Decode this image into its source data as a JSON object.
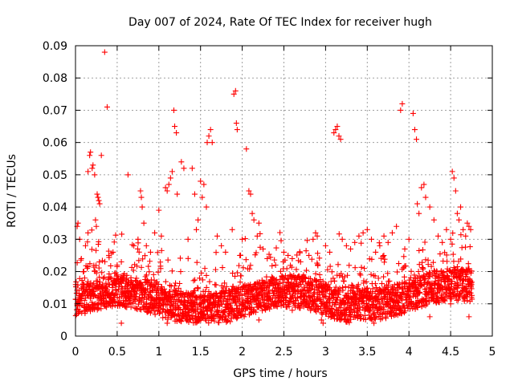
{
  "chart_data": {
    "type": "scatter",
    "title": "Day 007 of 2024, Rate Of TEC Index for receiver hugh",
    "xlabel": "GPS time / hours",
    "ylabel": "ROTI / TECUs",
    "xlim": [
      0,
      5
    ],
    "ylim": [
      0,
      0.09
    ],
    "xticks": [
      0,
      0.5,
      1,
      1.5,
      2,
      2.5,
      3,
      3.5,
      4,
      4.5,
      5
    ],
    "xtick_labels": [
      "0",
      "0.5",
      "1",
      "1.5",
      "2",
      "2.5",
      "3",
      "3.5",
      "4",
      "4.5",
      "5"
    ],
    "yticks": [
      0,
      0.01,
      0.02,
      0.03,
      0.04,
      0.05,
      0.06,
      0.07,
      0.08,
      0.09
    ],
    "ytick_labels": [
      "0",
      "0.01",
      "0.02",
      "0.03",
      "0.04",
      "0.05",
      "0.06",
      "0.07",
      "0.08",
      "0.09"
    ],
    "grid": true,
    "marker": "+",
    "marker_color": "#ff0000",
    "series": [
      {
        "name": "ROTI",
        "points": [
          [
            0.02,
            0.034
          ],
          [
            0.03,
            0.035
          ],
          [
            0.05,
            0.03
          ],
          [
            0.07,
            0.024
          ],
          [
            0.1,
            0.02
          ],
          [
            0.12,
            0.028
          ],
          [
            0.15,
            0.032
          ],
          [
            0.15,
            0.051
          ],
          [
            0.17,
            0.056
          ],
          [
            0.18,
            0.057
          ],
          [
            0.2,
            0.052
          ],
          [
            0.21,
            0.053
          ],
          [
            0.23,
            0.05
          ],
          [
            0.24,
            0.036
          ],
          [
            0.25,
            0.034
          ],
          [
            0.26,
            0.044
          ],
          [
            0.27,
            0.043
          ],
          [
            0.28,
            0.042
          ],
          [
            0.29,
            0.041
          ],
          [
            0.31,
            0.056
          ],
          [
            0.35,
            0.088
          ],
          [
            0.38,
            0.071
          ],
          [
            0.4,
            0.025
          ],
          [
            0.45,
            0.026
          ],
          [
            0.5,
            0.022
          ],
          [
            0.55,
            0.023
          ],
          [
            0.63,
            0.05
          ],
          [
            0.7,
            0.028
          ],
          [
            0.75,
            0.03
          ],
          [
            0.78,
            0.045
          ],
          [
            0.79,
            0.043
          ],
          [
            0.8,
            0.04
          ],
          [
            0.82,
            0.035
          ],
          [
            0.85,
            0.028
          ],
          [
            0.9,
            0.026
          ],
          [
            0.95,
            0.032
          ],
          [
            1.0,
            0.039
          ],
          [
            1.03,
            0.031
          ],
          [
            1.08,
            0.046
          ],
          [
            1.1,
            0.045
          ],
          [
            1.12,
            0.047
          ],
          [
            1.14,
            0.049
          ],
          [
            1.16,
            0.051
          ],
          [
            1.18,
            0.07
          ],
          [
            1.19,
            0.065
          ],
          [
            1.21,
            0.063
          ],
          [
            1.22,
            0.044
          ],
          [
            1.27,
            0.054
          ],
          [
            1.3,
            0.052
          ],
          [
            1.35,
            0.03
          ],
          [
            1.4,
            0.052
          ],
          [
            1.43,
            0.044
          ],
          [
            1.45,
            0.033
          ],
          [
            1.47,
            0.036
          ],
          [
            1.5,
            0.048
          ],
          [
            1.52,
            0.043
          ],
          [
            1.54,
            0.047
          ],
          [
            1.57,
            0.04
          ],
          [
            1.58,
            0.06
          ],
          [
            1.6,
            0.062
          ],
          [
            1.62,
            0.064
          ],
          [
            1.64,
            0.06
          ],
          [
            1.7,
            0.031
          ],
          [
            1.75,
            0.028
          ],
          [
            1.8,
            0.026
          ],
          [
            1.88,
            0.033
          ],
          [
            1.9,
            0.075
          ],
          [
            1.92,
            0.076
          ],
          [
            1.93,
            0.066
          ],
          [
            1.94,
            0.064
          ],
          [
            2.0,
            0.03
          ],
          [
            2.05,
            0.058
          ],
          [
            2.08,
            0.045
          ],
          [
            2.1,
            0.044
          ],
          [
            2.12,
            0.038
          ],
          [
            2.14,
            0.036
          ],
          [
            2.18,
            0.031
          ],
          [
            2.2,
            0.035
          ],
          [
            2.25,
            0.027
          ],
          [
            2.3,
            0.024
          ],
          [
            2.4,
            0.022
          ],
          [
            2.5,
            0.026
          ],
          [
            2.55,
            0.025
          ],
          [
            2.6,
            0.024
          ],
          [
            2.7,
            0.023
          ],
          [
            2.8,
            0.025
          ],
          [
            2.85,
            0.03
          ],
          [
            2.88,
            0.032
          ],
          [
            2.9,
            0.031
          ],
          [
            2.95,
            0.005
          ],
          [
            3.0,
            0.028
          ],
          [
            3.05,
            0.026
          ],
          [
            3.1,
            0.063
          ],
          [
            3.12,
            0.064
          ],
          [
            3.14,
            0.065
          ],
          [
            3.16,
            0.062
          ],
          [
            3.18,
            0.061
          ],
          [
            3.2,
            0.03
          ],
          [
            3.25,
            0.028
          ],
          [
            3.3,
            0.027
          ],
          [
            3.35,
            0.029
          ],
          [
            3.4,
            0.031
          ],
          [
            3.45,
            0.032
          ],
          [
            3.5,
            0.033
          ],
          [
            3.55,
            0.03
          ],
          [
            3.6,
            0.026
          ],
          [
            3.65,
            0.028
          ],
          [
            3.7,
            0.031
          ],
          [
            3.75,
            0.029
          ],
          [
            3.8,
            0.032
          ],
          [
            3.85,
            0.034
          ],
          [
            3.9,
            0.07
          ],
          [
            3.92,
            0.072
          ],
          [
            3.95,
            0.027
          ],
          [
            4.0,
            0.03
          ],
          [
            4.05,
            0.069
          ],
          [
            4.07,
            0.064
          ],
          [
            4.09,
            0.061
          ],
          [
            4.1,
            0.041
          ],
          [
            4.12,
            0.038
          ],
          [
            4.15,
            0.046
          ],
          [
            4.18,
            0.047
          ],
          [
            4.2,
            0.043
          ],
          [
            4.25,
            0.04
          ],
          [
            4.3,
            0.036
          ],
          [
            4.35,
            0.031
          ],
          [
            4.4,
            0.029
          ],
          [
            4.45,
            0.033
          ],
          [
            4.5,
            0.03
          ],
          [
            4.52,
            0.051
          ],
          [
            4.54,
            0.049
          ],
          [
            4.56,
            0.045
          ],
          [
            4.58,
            0.038
          ],
          [
            4.6,
            0.036
          ],
          [
            4.62,
            0.04
          ],
          [
            4.65,
            0.033
          ],
          [
            4.68,
            0.031
          ],
          [
            4.7,
            0.035
          ],
          [
            4.72,
            0.034
          ],
          [
            4.74,
            0.033
          ],
          [
            0.05,
            0.012
          ],
          [
            0.1,
            0.009
          ],
          [
            0.2,
            0.014
          ],
          [
            0.3,
            0.011
          ],
          [
            0.4,
            0.01
          ],
          [
            0.5,
            0.013
          ],
          [
            0.6,
            0.009
          ],
          [
            0.7,
            0.012
          ],
          [
            0.8,
            0.015
          ],
          [
            0.9,
            0.01
          ],
          [
            1.0,
            0.012
          ],
          [
            1.1,
            0.008
          ],
          [
            1.2,
            0.014
          ],
          [
            1.3,
            0.011
          ],
          [
            1.4,
            0.013
          ],
          [
            1.5,
            0.01
          ],
          [
            1.6,
            0.012
          ],
          [
            1.7,
            0.009
          ],
          [
            1.8,
            0.014
          ],
          [
            1.9,
            0.011
          ],
          [
            2.0,
            0.01
          ],
          [
            2.1,
            0.013
          ],
          [
            2.2,
            0.009
          ],
          [
            2.3,
            0.012
          ],
          [
            2.4,
            0.01
          ],
          [
            2.5,
            0.011
          ],
          [
            2.6,
            0.008
          ],
          [
            2.7,
            0.012
          ],
          [
            2.8,
            0.01
          ],
          [
            2.9,
            0.013
          ],
          [
            3.0,
            0.009
          ],
          [
            3.1,
            0.012
          ],
          [
            3.2,
            0.011
          ],
          [
            3.3,
            0.014
          ],
          [
            3.4,
            0.01
          ],
          [
            3.5,
            0.012
          ],
          [
            3.6,
            0.009
          ],
          [
            3.7,
            0.013
          ],
          [
            3.8,
            0.011
          ],
          [
            3.9,
            0.012
          ],
          [
            4.0,
            0.014
          ],
          [
            4.1,
            0.01
          ],
          [
            4.2,
            0.013
          ],
          [
            4.3,
            0.011
          ],
          [
            4.4,
            0.012
          ],
          [
            4.5,
            0.01
          ],
          [
            4.6,
            0.013
          ],
          [
            4.7,
            0.011
          ],
          [
            4.75,
            0.012
          ],
          [
            0.55,
            0.004
          ],
          [
            1.1,
            0.004
          ],
          [
            1.45,
            0.005
          ],
          [
            2.2,
            0.005
          ],
          [
            2.97,
            0.004
          ],
          [
            3.58,
            0.004
          ],
          [
            4.25,
            0.006
          ],
          [
            4.72,
            0.006
          ]
        ]
      }
    ]
  }
}
